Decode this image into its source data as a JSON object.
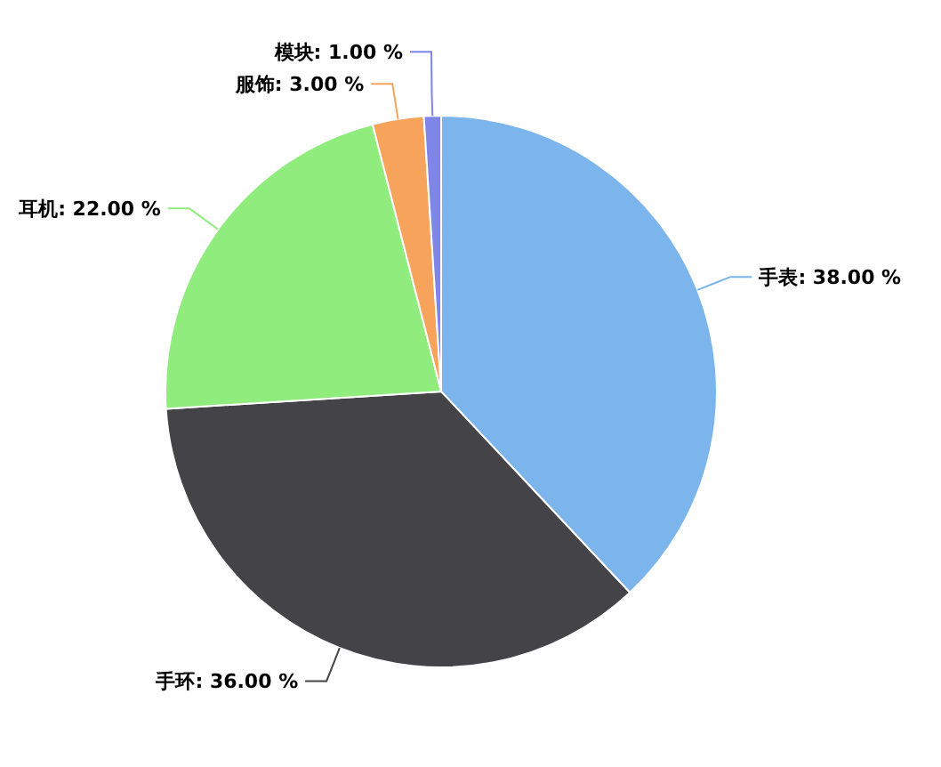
{
  "chart_data": {
    "type": "pie",
    "categories": [
      "手表",
      "手环",
      "耳机",
      "服饰",
      "模块"
    ],
    "values": [
      38,
      36,
      22,
      3,
      1
    ],
    "value_labels": [
      "38.00 %",
      "36.00 %",
      "22.00 %",
      "3.00 %",
      "1.00 %"
    ],
    "colors": [
      "#7cb5ec",
      "#434348",
      "#90ed7d",
      "#f7a35c",
      "#8085e9"
    ]
  }
}
